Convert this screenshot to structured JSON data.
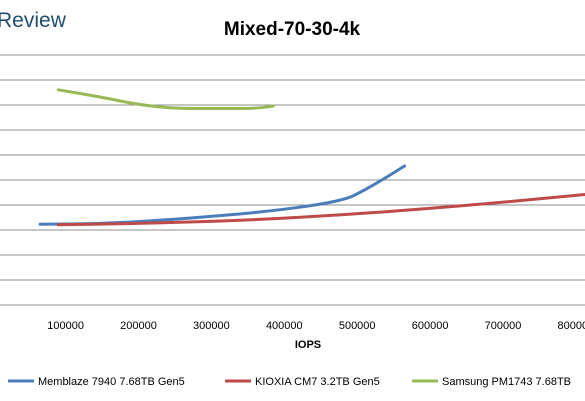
{
  "logo_text": "Review",
  "chart_data": {
    "type": "line",
    "title": "Mixed-70-30-4k",
    "xlabel": "IOPS",
    "ylabel": "",
    "x_ticks": [
      100000,
      200000,
      300000,
      400000,
      500000,
      600000,
      700000,
      800000
    ],
    "x_tick_labels": [
      "100000",
      "200000",
      "300000",
      "400000",
      "500000",
      "600000",
      "700000",
      "800000"
    ],
    "grid": true,
    "legend_position": "bottom",
    "series": [
      {
        "name": "Memblaze 7940 7.68TB Gen5",
        "color": "#4a7ebb",
        "x": [
          65000,
          160000,
          260000,
          380000,
          480000,
          510000,
          540000,
          565000
        ],
        "y": [
          2.33,
          2.3,
          2.11,
          1.82,
          1.4,
          0.97,
          0.45,
          0.0
        ]
      },
      {
        "name": "KIOXIA CM7 3.2TB Gen5",
        "color": "#be4b48",
        "x": [
          90000,
          200000,
          350000,
          500000,
          650000,
          800000,
          890000
        ],
        "y": [
          2.35,
          2.3,
          2.17,
          1.92,
          1.58,
          1.18,
          0.92
        ]
      },
      {
        "name": "Samsung PM1743 7.68TB",
        "color": "#98b954",
        "x": [
          90000,
          150000,
          200000,
          250000,
          300000,
          360000,
          385000
        ],
        "y": [
          -3.05,
          -2.75,
          -2.45,
          -2.3,
          -2.3,
          -2.3,
          -2.4
        ]
      }
    ]
  }
}
